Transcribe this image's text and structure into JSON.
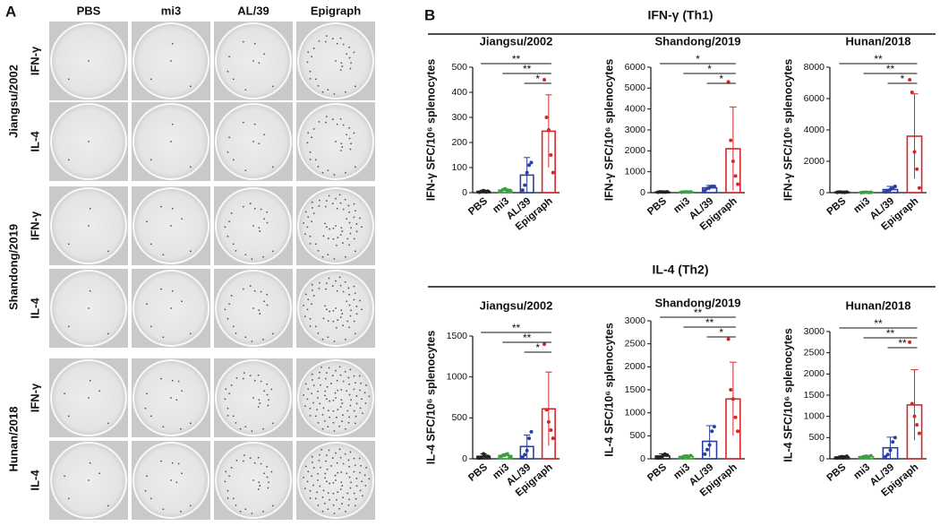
{
  "panel_a": {
    "label": "A",
    "columns": [
      "PBS",
      "mi3",
      "AL/39",
      "Epigraph"
    ],
    "groups": [
      {
        "name": "Jiangsu/2002",
        "rows": [
          "IFN-γ",
          "IL-4"
        ]
      },
      {
        "name": "Shandong/2019",
        "rows": [
          "IFN-γ",
          "IL-4"
        ]
      },
      {
        "name": "Hunan/2018",
        "rows": [
          "IFN-γ",
          "IL-4"
        ]
      }
    ]
  },
  "panel_b": {
    "label": "B",
    "sections": [
      {
        "title": "IFN-γ (Th1)"
      },
      {
        "title": "IL-4 (Th2)"
      }
    ]
  },
  "chart_data": [
    {
      "type": "bar",
      "title": "Jiangsu/2002",
      "ylabel": "IFN-γ SFC/10⁶ splenocytes",
      "categories": [
        "PBS",
        "mi3",
        "AL/39",
        "Epigraph"
      ],
      "colors": [
        "#222222",
        "#3aa040",
        "#2b3f9e",
        "#d62728"
      ],
      "values": [
        5,
        10,
        70,
        245
      ],
      "errors": [
        5,
        5,
        70,
        145
      ],
      "points": [
        [
          2,
          5,
          8,
          3,
          6
        ],
        [
          6,
          12,
          15,
          8,
          9
        ],
        [
          10,
          30,
          80,
          110,
          120
        ],
        [
          450,
          300,
          250,
          150,
          80
        ]
      ],
      "ylim": [
        0,
        500
      ],
      "yticks": [
        0,
        100,
        200,
        300,
        400,
        500
      ],
      "significance": [
        {
          "from": 0,
          "to": 3,
          "label": "**"
        },
        {
          "from": 1,
          "to": 3,
          "label": "**"
        },
        {
          "from": 2,
          "to": 3,
          "label": "*"
        }
      ]
    },
    {
      "type": "bar",
      "title": "Shandong/2019",
      "ylabel": "IFN-γ SFC/10⁶ splenocytes",
      "categories": [
        "PBS",
        "mi3",
        "AL/39",
        "Epigraph"
      ],
      "colors": [
        "#222222",
        "#3aa040",
        "#2b3f9e",
        "#d62728"
      ],
      "values": [
        30,
        30,
        230,
        2100
      ],
      "errors": [
        20,
        20,
        120,
        2000
      ],
      "points": [
        [
          20,
          40,
          30,
          25,
          35
        ],
        [
          20,
          30,
          40,
          25,
          35
        ],
        [
          100,
          200,
          250,
          300,
          300
        ],
        [
          5300,
          2500,
          1500,
          800,
          400
        ]
      ],
      "ylim": [
        0,
        6000
      ],
      "yticks": [
        0,
        1000,
        2000,
        3000,
        4000,
        5000,
        6000
      ],
      "significance": [
        {
          "from": 0,
          "to": 3,
          "label": "*"
        },
        {
          "from": 1,
          "to": 3,
          "label": "*"
        },
        {
          "from": 2,
          "to": 3,
          "label": "*"
        }
      ]
    },
    {
      "type": "bar",
      "title": "Hunan/2018",
      "ylabel": "IFN-γ SFC/10⁶ splenocytes",
      "categories": [
        "PBS",
        "mi3",
        "AL/39",
        "Epigraph"
      ],
      "colors": [
        "#222222",
        "#3aa040",
        "#2b3f9e",
        "#d62728"
      ],
      "values": [
        30,
        20,
        200,
        3600
      ],
      "errors": [
        20,
        10,
        200,
        2700
      ],
      "points": [
        [
          20,
          40,
          30,
          25,
          35
        ],
        [
          10,
          20,
          30,
          15,
          25
        ],
        [
          50,
          100,
          200,
          300,
          400
        ],
        [
          7200,
          6400,
          2600,
          1500,
          300
        ]
      ],
      "ylim": [
        0,
        8000
      ],
      "yticks": [
        0,
        2000,
        4000,
        6000,
        8000
      ],
      "significance": [
        {
          "from": 0,
          "to": 3,
          "label": "**"
        },
        {
          "from": 1,
          "to": 3,
          "label": "**"
        },
        {
          "from": 2,
          "to": 3,
          "label": "*"
        }
      ]
    },
    {
      "type": "bar",
      "title": "Jiangsu/2002",
      "ylabel": "IL-4 SFC/10⁶ splenocytes",
      "categories": [
        "PBS",
        "mi3",
        "AL/39",
        "Epigraph"
      ],
      "colors": [
        "#222222",
        "#3aa040",
        "#2b3f9e",
        "#d62728"
      ],
      "values": [
        30,
        40,
        150,
        610
      ],
      "errors": [
        30,
        20,
        140,
        450
      ],
      "points": [
        [
          10,
          20,
          60,
          30,
          30
        ],
        [
          30,
          40,
          50,
          60,
          20
        ],
        [
          20,
          50,
          100,
          250,
          330
        ],
        [
          1400,
          600,
          450,
          350,
          250
        ]
      ],
      "ylim": [
        0,
        1500
      ],
      "yticks": [
        0,
        500,
        1000,
        1500
      ],
      "significance": [
        {
          "from": 0,
          "to": 3,
          "label": "**"
        },
        {
          "from": 1,
          "to": 3,
          "label": "**"
        },
        {
          "from": 2,
          "to": 3,
          "label": "*"
        }
      ]
    },
    {
      "type": "bar",
      "title": "Shandong/2019",
      "ylabel": "IL-4 SFC/10⁶ splenocytes",
      "categories": [
        "PBS",
        "mi3",
        "AL/39",
        "Epigraph"
      ],
      "colors": [
        "#222222",
        "#3aa040",
        "#2b3f9e",
        "#d62728"
      ],
      "values": [
        60,
        50,
        380,
        1300
      ],
      "errors": [
        50,
        30,
        340,
        800
      ],
      "points": [
        [
          20,
          40,
          60,
          100,
          80
        ],
        [
          30,
          50,
          60,
          40,
          70
        ],
        [
          100,
          200,
          300,
          600,
          700
        ],
        [
          2600,
          1500,
          1300,
          900,
          600
        ]
      ],
      "ylim": [
        0,
        3000
      ],
      "yticks": [
        0,
        500,
        1000,
        1500,
        2000,
        2500,
        3000
      ],
      "significance": [
        {
          "from": 0,
          "to": 3,
          "label": "**"
        },
        {
          "from": 1,
          "to": 3,
          "label": "**"
        },
        {
          "from": 2,
          "to": 3,
          "label": "*"
        }
      ]
    },
    {
      "type": "bar",
      "title": "Hunan/2018",
      "ylabel": "IL-4 SFC/10⁶ splenocytes",
      "categories": [
        "PBS",
        "mi3",
        "AL/39",
        "Epigraph"
      ],
      "colors": [
        "#222222",
        "#3aa040",
        "#2b3f9e",
        "#d62728"
      ],
      "values": [
        40,
        50,
        260,
        1270
      ],
      "errors": [
        30,
        30,
        250,
        830
      ],
      "points": [
        [
          20,
          30,
          50,
          40,
          60
        ],
        [
          30,
          50,
          60,
          40,
          70
        ],
        [
          50,
          100,
          200,
          400,
          500
        ],
        [
          2750,
          1300,
          1000,
          800,
          600
        ]
      ],
      "ylim": [
        0,
        3000
      ],
      "yticks": [
        0,
        500,
        1000,
        1500,
        2000,
        2500,
        3000
      ],
      "significance": [
        {
          "from": 0,
          "to": 3,
          "label": "**"
        },
        {
          "from": 1,
          "to": 3,
          "label": "**"
        },
        {
          "from": 2,
          "to": 3,
          "label": "**"
        }
      ]
    }
  ]
}
